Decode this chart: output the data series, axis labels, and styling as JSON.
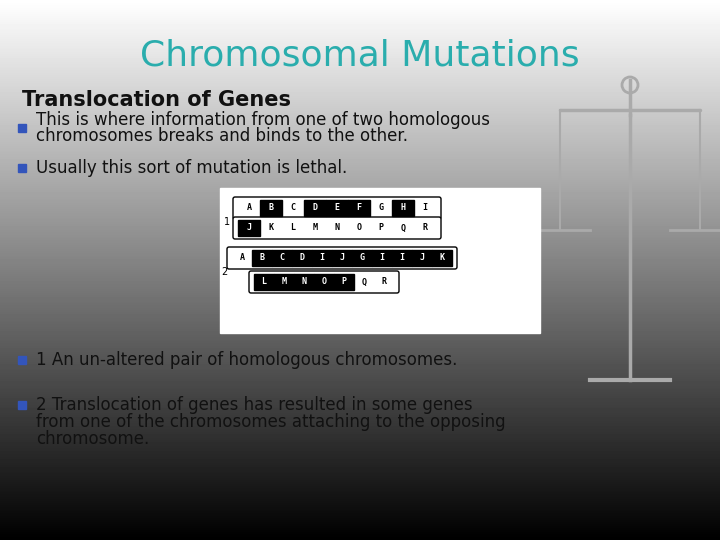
{
  "title": "Chromosomal Mutations",
  "title_color": "#2AADAD",
  "subtitle": "Translocation of Genes",
  "background_top": "#D4D4D4",
  "background_bottom": "#B8B8B8",
  "bullet_color": "#3355BB",
  "text_color": "#111111",
  "bullets": [
    [
      "This is where information from one of two homologous",
      "chromosomes breaks and binds to the other."
    ],
    [
      "Usually this sort of mutation is lethal."
    ],
    [
      "1 An un-altered pair of homologous chromosomes."
    ],
    [
      "2 Translocation of genes has resulted in some genes",
      "from one of the chromosomes attaching to the opposing",
      "chromosome."
    ]
  ],
  "chr1_row1_letters": [
    "A",
    "B",
    "C",
    "D",
    "E",
    "F",
    "G",
    "H",
    "I"
  ],
  "chr1_row1_black": [
    1,
    3,
    4,
    5,
    7
  ],
  "chr1_row2_letters": [
    "J",
    "K",
    "L",
    "M",
    "N",
    "O",
    "P",
    "Q",
    "R"
  ],
  "chr1_row2_black": [
    0
  ],
  "chr2_row1_letters": [
    "A",
    "B",
    "C",
    "D",
    "I",
    "J",
    "G",
    "I",
    "I",
    "J",
    "K"
  ],
  "chr2_row1_black": [
    1,
    2,
    3,
    4,
    5,
    6,
    7,
    8,
    9,
    10
  ],
  "chr2_row2_letters": [
    "L",
    "M",
    "N",
    "O",
    "P",
    "Q",
    "R"
  ],
  "chr2_row2_black": [
    0,
    1,
    2,
    3,
    4
  ]
}
